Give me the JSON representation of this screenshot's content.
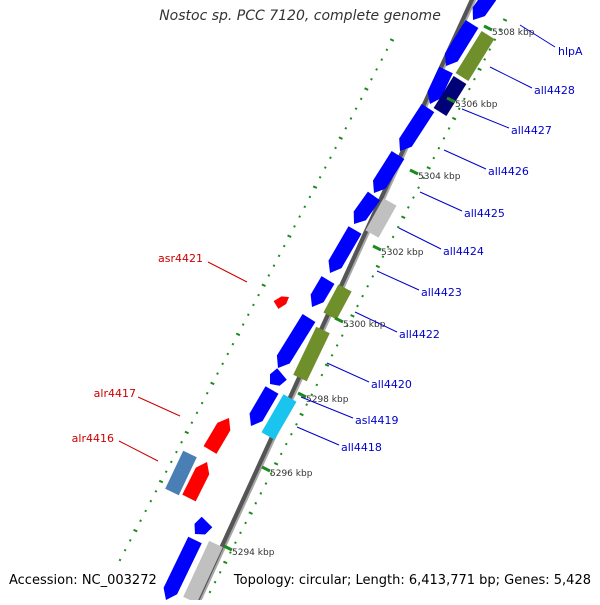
{
  "title": "Nostoc sp. PCC 7120, complete genome",
  "footer": {
    "accession": "Accession: NC_003272",
    "summary": "Topology: circular; Length: 6,413,771 bp; Genes: 5,428"
  },
  "colors": {
    "forward_gene": "#ff0000",
    "reverse_gene": "#0000ff",
    "reverse_label": "#0000cc",
    "forward_label": "#cc0000",
    "feature_olive": "#6f8f2a",
    "feature_cyan": "#19c4ee",
    "feature_navy": "#000077",
    "feature_gray": "#c0c0c0",
    "feature_steel": "#4a7fb5",
    "backbone": "#808080",
    "tick_marks": "#1e8a1e"
  },
  "ticks": [
    {
      "label": "5294 kbp",
      "kbp": 5294
    },
    {
      "label": "5296 kbp",
      "kbp": 5296
    },
    {
      "label": "5298 kbp",
      "kbp": 5298
    },
    {
      "label": "5300 kbp",
      "kbp": 5300
    },
    {
      "label": "5302 kbp",
      "kbp": 5302
    },
    {
      "label": "5304 kbp",
      "kbp": 5304
    },
    {
      "label": "5306 kbp",
      "kbp": 5306
    },
    {
      "label": "5308 kbp",
      "kbp": 5308
    }
  ],
  "gene_labels": [
    {
      "name": "hlpA",
      "strand": "reverse"
    },
    {
      "name": "all4428",
      "strand": "reverse"
    },
    {
      "name": "all4427",
      "strand": "reverse"
    },
    {
      "name": "all4426",
      "strand": "reverse"
    },
    {
      "name": "all4425",
      "strand": "reverse"
    },
    {
      "name": "all4424",
      "strand": "reverse"
    },
    {
      "name": "all4423",
      "strand": "reverse"
    },
    {
      "name": "all4422",
      "strand": "reverse"
    },
    {
      "name": "all4420",
      "strand": "reverse"
    },
    {
      "name": "asl4419",
      "strand": "reverse"
    },
    {
      "name": "all4418",
      "strand": "reverse"
    },
    {
      "name": "asr4421",
      "strand": "forward"
    },
    {
      "name": "alr4417",
      "strand": "forward"
    },
    {
      "name": "alr4416",
      "strand": "forward"
    }
  ]
}
